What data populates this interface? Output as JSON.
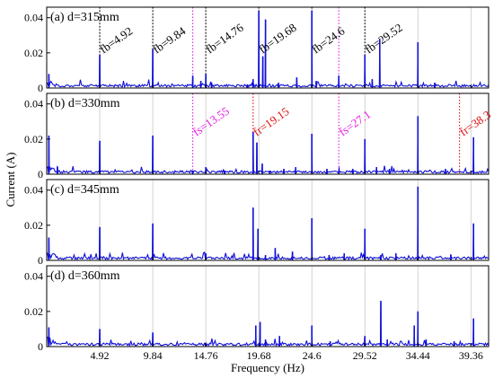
{
  "figure": {
    "xlabel": "Frequency (Hz)",
    "ylabel": "Current (A)",
    "x_tick_labels": [
      "4.92",
      "9.84",
      "14.76",
      "19.68",
      "24.6",
      "29.52",
      "34.44",
      "39.36"
    ]
  },
  "colors": {
    "signal": "#1010d8",
    "grid": "#c8c8c8",
    "guide_black": "#000000",
    "guide_magenta": "#e020e0",
    "guide_red": "#e01010"
  },
  "chart_data": [
    {
      "type": "line",
      "title": "(a) d=315mm",
      "xlabel": "Frequency (Hz)",
      "ylabel": "Current (A)",
      "xlim": [
        0,
        41
      ],
      "ylim": [
        0,
        0.046
      ],
      "grid": true,
      "y_ticks": [
        "0",
        "0.02",
        "0.04"
      ],
      "annotations": [
        {
          "text": "fb=4.92",
          "x": 4.92,
          "color": "black",
          "style": "dotted"
        },
        {
          "text": "fb=9.84",
          "x": 9.84,
          "color": "black",
          "style": "dotted"
        },
        {
          "text": "fb=14.76",
          "x": 14.76,
          "color": "black",
          "style": "dotted"
        },
        {
          "text": "fb=19.68",
          "x": 19.68,
          "color": "black",
          "style": "dotted"
        },
        {
          "text": "fb=24.6",
          "x": 24.6,
          "color": "black",
          "style": "dotted"
        },
        {
          "text": "fb=29.52",
          "x": 29.52,
          "color": "black",
          "style": "dotted"
        },
        {
          "text": "",
          "x": 13.55,
          "color": "magenta",
          "style": "dotted"
        },
        {
          "text": "",
          "x": 27.1,
          "color": "magenta",
          "style": "dotted"
        }
      ],
      "peaks": [
        [
          0.2,
          0.008
        ],
        [
          4.92,
          0.019
        ],
        [
          9.84,
          0.022
        ],
        [
          13.55,
          0.007
        ],
        [
          14.3,
          0.004
        ],
        [
          14.76,
          0.008
        ],
        [
          15.3,
          0.003
        ],
        [
          18.6,
          0.002
        ],
        [
          19.15,
          0.005
        ],
        [
          19.68,
          0.044
        ],
        [
          20.05,
          0.018
        ],
        [
          20.3,
          0.039
        ],
        [
          21.5,
          0.003
        ],
        [
          23.2,
          0.006
        ],
        [
          24.6,
          0.044
        ],
        [
          25.0,
          0.004
        ],
        [
          27.1,
          0.007
        ],
        [
          29.52,
          0.019
        ],
        [
          30.2,
          0.005
        ],
        [
          30.9,
          0.028
        ],
        [
          34.44,
          0.026
        ],
        [
          36.0,
          0.003
        ]
      ]
    },
    {
      "type": "line",
      "title": "(b) d=330mm",
      "xlabel": "Frequency (Hz)",
      "ylabel": "Current (A)",
      "xlim": [
        0,
        41
      ],
      "ylim": [
        0,
        0.046
      ],
      "grid": true,
      "y_ticks": [
        "0",
        "0.02",
        "0.04"
      ],
      "annotations": [
        {
          "text": "fs=13.55",
          "x": 13.55,
          "color": "magenta",
          "style": "dotted"
        },
        {
          "text": "fr=19.15",
          "x": 19.15,
          "color": "red",
          "style": "dotted"
        },
        {
          "text": "fs=27.1",
          "x": 27.1,
          "color": "magenta",
          "style": "dotted"
        },
        {
          "text": "fr=38.3",
          "x": 38.3,
          "color": "red",
          "style": "dotted"
        }
      ],
      "peaks": [
        [
          0.2,
          0.022
        ],
        [
          1.0,
          0.004
        ],
        [
          4.92,
          0.019
        ],
        [
          9.84,
          0.022
        ],
        [
          13.55,
          0.002
        ],
        [
          14.76,
          0.004
        ],
        [
          16.5,
          0.002
        ],
        [
          19.15,
          0.024
        ],
        [
          19.5,
          0.018
        ],
        [
          20.0,
          0.006
        ],
        [
          20.7,
          0.002
        ],
        [
          22.0,
          0.003
        ],
        [
          23.1,
          0.004
        ],
        [
          24.6,
          0.023
        ],
        [
          26.0,
          0.003
        ],
        [
          27.1,
          0.002
        ],
        [
          28.4,
          0.003
        ],
        [
          29.52,
          0.02
        ],
        [
          30.6,
          0.004
        ],
        [
          31.8,
          0.003
        ],
        [
          34.44,
          0.033
        ],
        [
          37.0,
          0.003
        ],
        [
          39.6,
          0.021
        ]
      ]
    },
    {
      "type": "line",
      "title": "(c) d=345mm",
      "xlabel": "Frequency (Hz)",
      "ylabel": "Current (A)",
      "xlim": [
        0,
        41
      ],
      "ylim": [
        0,
        0.046
      ],
      "grid": true,
      "y_ticks": [
        "0",
        "0.02",
        "0.04"
      ],
      "annotations": [],
      "peaks": [
        [
          0.2,
          0.013
        ],
        [
          4.92,
          0.019
        ],
        [
          9.84,
          0.021
        ],
        [
          14.76,
          0.004
        ],
        [
          19.15,
          0.03
        ],
        [
          19.6,
          0.018
        ],
        [
          20.3,
          0.003
        ],
        [
          21.2,
          0.007
        ],
        [
          22.8,
          0.005
        ],
        [
          24.6,
          0.024
        ],
        [
          26.2,
          0.003
        ],
        [
          27.6,
          0.004
        ],
        [
          29.52,
          0.018
        ],
        [
          31.0,
          0.003
        ],
        [
          32.4,
          0.004
        ],
        [
          34.44,
          0.042
        ],
        [
          37.5,
          0.003
        ],
        [
          39.6,
          0.021
        ]
      ]
    },
    {
      "type": "line",
      "title": "(d) d=360mm",
      "xlabel": "Frequency (Hz)",
      "ylabel": "Current (A)",
      "xlim": [
        0,
        41
      ],
      "ylim": [
        0,
        0.046
      ],
      "grid": true,
      "y_ticks": [
        "0",
        "0.02",
        "0.04"
      ],
      "annotations": [],
      "peaks": [
        [
          0.2,
          0.011
        ],
        [
          4.92,
          0.01
        ],
        [
          9.84,
          0.008
        ],
        [
          14.76,
          0.002
        ],
        [
          19.4,
          0.012
        ],
        [
          19.8,
          0.014
        ],
        [
          20.3,
          0.004
        ],
        [
          21.6,
          0.006
        ],
        [
          24.6,
          0.012
        ],
        [
          26.3,
          0.003
        ],
        [
          29.52,
          0.006
        ],
        [
          31.0,
          0.026
        ],
        [
          31.6,
          0.004
        ],
        [
          34.1,
          0.012
        ],
        [
          34.44,
          0.02
        ],
        [
          35.2,
          0.004
        ],
        [
          37.8,
          0.003
        ],
        [
          39.6,
          0.016
        ]
      ]
    }
  ]
}
